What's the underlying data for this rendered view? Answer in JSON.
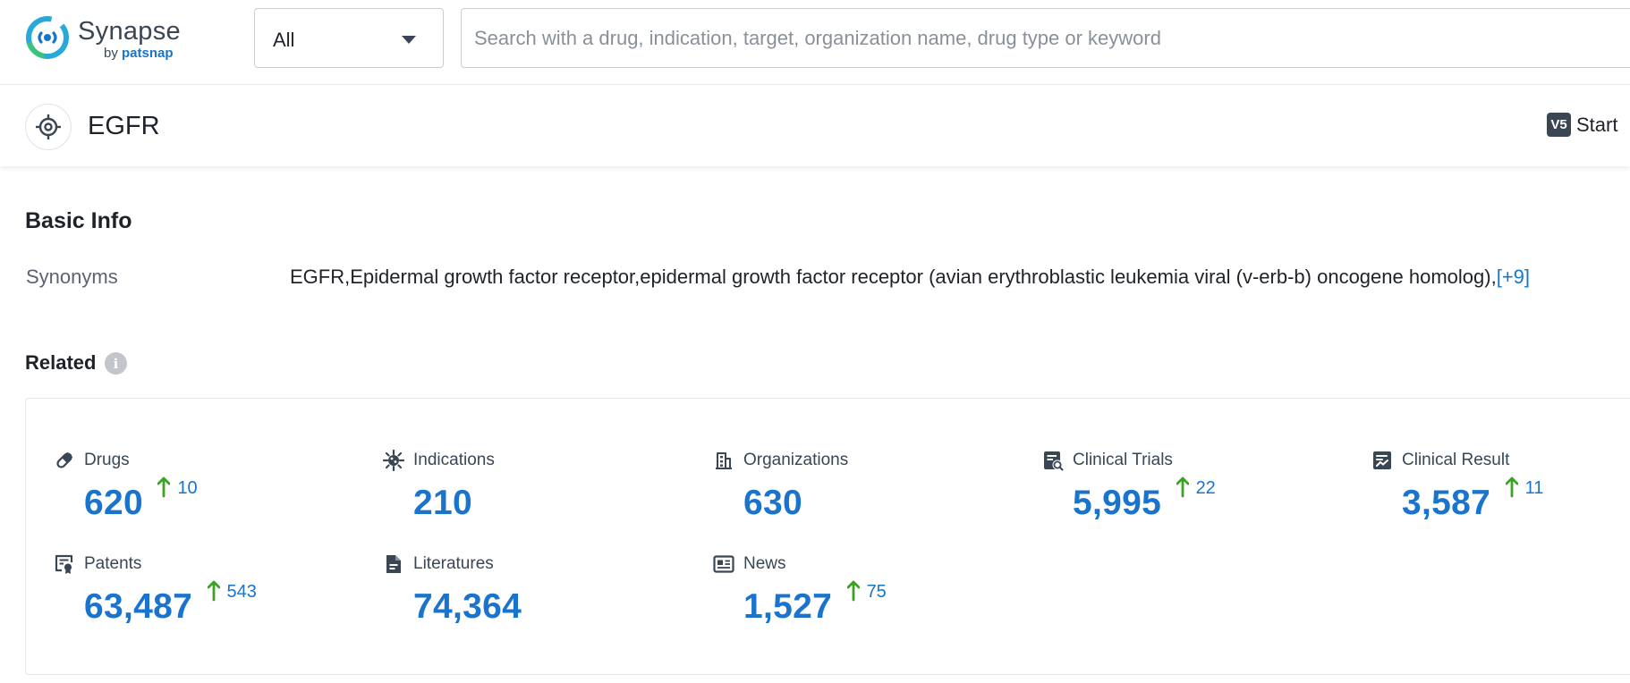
{
  "logo": {
    "name": "Synapse",
    "by": "by",
    "brand": "patsnap"
  },
  "search": {
    "scope_value": "All",
    "placeholder": "Search with a drug, indication, target, organization name, drug type or keyword"
  },
  "entity": {
    "title": "EGFR",
    "icon": "target-icon",
    "badge": "V5",
    "action_label": "Start"
  },
  "basic_info": {
    "title": "Basic Info",
    "synonyms_label": "Synonyms",
    "synonyms_value": "EGFR,Epidermal growth factor receptor,epidermal growth factor receptor (avian erythroblastic leukemia viral (v-erb-b) oncogene homolog),",
    "synonyms_more": "[+9]"
  },
  "related": {
    "title": "Related",
    "info_icon": "i",
    "stats": [
      {
        "label": "Drugs",
        "icon": "pill-icon",
        "value": "620",
        "delta": "10"
      },
      {
        "label": "Indications",
        "icon": "virus-icon",
        "value": "210",
        "delta": ""
      },
      {
        "label": "Organizations",
        "icon": "building-icon",
        "value": "630",
        "delta": ""
      },
      {
        "label": "Clinical Trials",
        "icon": "clinical-trials-icon",
        "value": "5,995",
        "delta": "22"
      },
      {
        "label": "Clinical Result",
        "icon": "clinical-result-icon",
        "value": "3,587",
        "delta": "11"
      },
      {
        "label": "Patents",
        "icon": "patent-icon",
        "value": "63,487",
        "delta": "543"
      },
      {
        "label": "Literatures",
        "icon": "document-icon",
        "value": "74,364",
        "delta": ""
      },
      {
        "label": "News",
        "icon": "newspaper-icon",
        "value": "1,527",
        "delta": "75"
      }
    ]
  },
  "colors": {
    "accent": "#1a73cc",
    "up_arrow": "#3ca226",
    "icon": "#3a4654"
  }
}
